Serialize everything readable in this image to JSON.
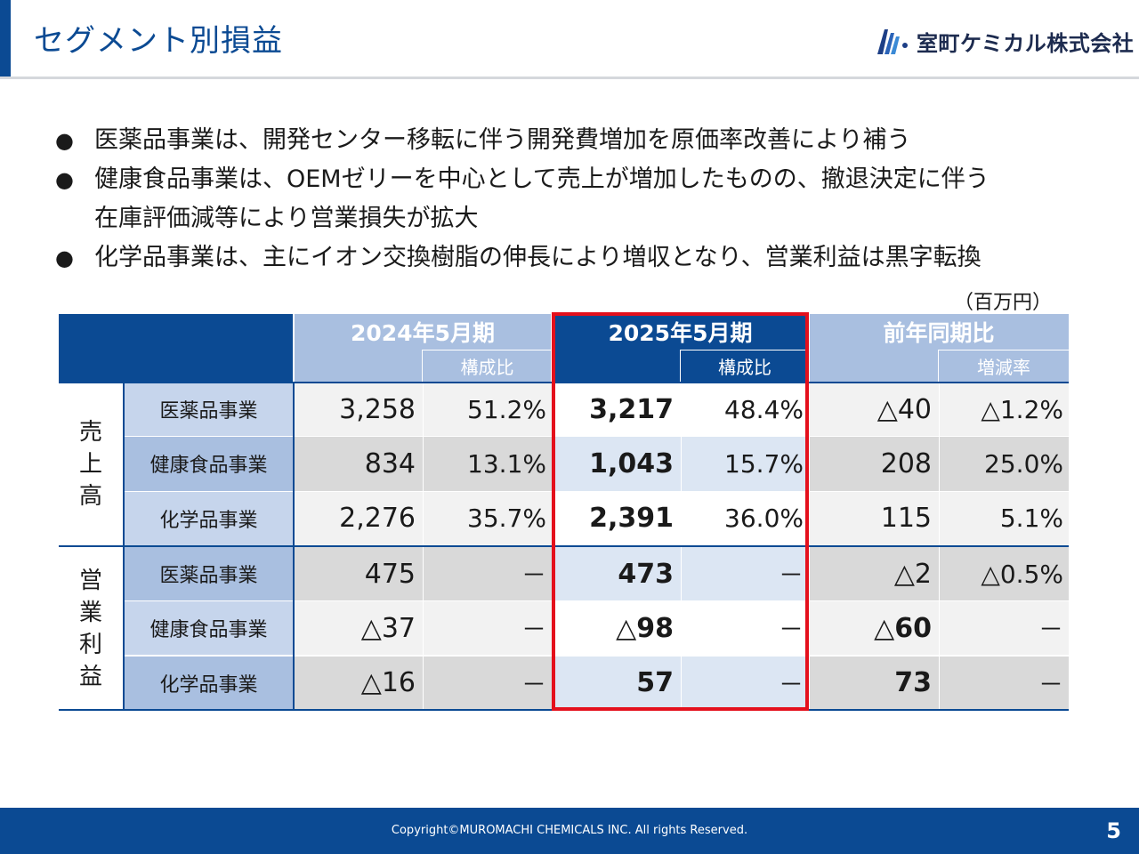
{
  "header": {
    "title": "セグメント別損益",
    "company": "室町ケミカル株式会社"
  },
  "bullets": [
    "医薬品事業は、開発センター移転に伴う開発費増加を原価率改善により補う",
    "健康食品事業は、OEMゼリーを中心として売上が増加したものの、撤退決定に伴う\n在庫評価減等により営業損失が拡大",
    "化学品事業は、主にイオン交換樹脂の伸長により増収となり、営業利益は黒字転換"
  ],
  "bullet_symbol": "●",
  "unit": "（百万円）",
  "table": {
    "col_headers": {
      "fy2024": "2024年5月期",
      "fy2025": "2025年5月期",
      "yoy": "前年同期比",
      "ratio": "構成比",
      "change_rate": "増減率"
    },
    "groups": {
      "sales": [
        "売",
        "上",
        "高"
      ],
      "op_income": [
        "営",
        "業",
        "利",
        "益"
      ]
    },
    "rows": [
      {
        "segment": "医薬品事業",
        "fy2024": "3,258",
        "fy2024_ratio": "51.2%",
        "fy2025": "3,217",
        "fy2025_ratio": "48.4%",
        "yoy": "△40",
        "yoy_rate": "△1.2%"
      },
      {
        "segment": "健康食品事業",
        "fy2024": "834",
        "fy2024_ratio": "13.1%",
        "fy2025": "1,043",
        "fy2025_ratio": "15.7%",
        "yoy": "208",
        "yoy_rate": "25.0%"
      },
      {
        "segment": "化学品事業",
        "fy2024": "2,276",
        "fy2024_ratio": "35.7%",
        "fy2025": "2,391",
        "fy2025_ratio": "36.0%",
        "yoy": "115",
        "yoy_rate": "5.1%"
      },
      {
        "segment": "医薬品事業",
        "fy2024": "475",
        "fy2024_ratio": "－",
        "fy2025": "473",
        "fy2025_ratio": "－",
        "yoy": "△2",
        "yoy_rate": "△0.5%"
      },
      {
        "segment": "健康食品事業",
        "fy2024": "△37",
        "fy2024_ratio": "－",
        "fy2025": "△98",
        "fy2025_ratio": "－",
        "yoy": "△60",
        "yoy_rate": "－"
      },
      {
        "segment": "化学品事業",
        "fy2024": "△16",
        "fy2024_ratio": "－",
        "fy2025": "57",
        "fy2025_ratio": "－",
        "yoy": "73",
        "yoy_rate": "－"
      }
    ]
  },
  "footer": {
    "copyright": "Copyright©MUROMACHI CHEMICALS INC. All rights Reserved.",
    "page": "5"
  },
  "colors": {
    "brand_blue": "#0b4a93",
    "header_light_blue": "#a9bfe0",
    "label_blue": "#c6d5ec",
    "label_blue_dark": "#a9bfe0",
    "highlight_red": "#e4101c"
  }
}
